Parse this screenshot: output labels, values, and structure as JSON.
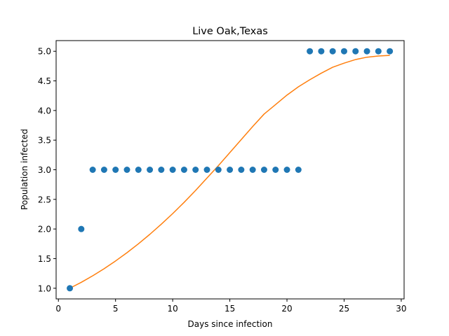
{
  "chart_data": {
    "type": "scatter",
    "title": "Live Oak,Texas",
    "xlabel": "Days since infection",
    "ylabel": "Population infected",
    "xlim": [
      0.0,
      30.0
    ],
    "ylim": [
      1.0,
      5.0
    ],
    "xticks": [
      0,
      5,
      10,
      15,
      20,
      25,
      30
    ],
    "yticks": [
      1.0,
      1.5,
      2.0,
      2.5,
      3.0,
      3.5,
      4.0,
      4.5,
      5.0
    ],
    "xtick_labels": [
      "0",
      "5",
      "10",
      "15",
      "20",
      "25",
      "30"
    ],
    "ytick_labels": [
      "1.0",
      "1.5",
      "2.0",
      "2.5",
      "3.0",
      "3.5",
      "4.0",
      "4.5",
      "5.0"
    ],
    "grid": false,
    "series": [
      {
        "kind": "scatter",
        "color": "#1f77b4",
        "x": [
          1,
          2,
          3,
          4,
          5,
          6,
          7,
          8,
          9,
          10,
          11,
          12,
          13,
          14,
          15,
          16,
          17,
          18,
          19,
          20,
          21,
          22,
          23,
          24,
          25,
          26,
          27,
          28,
          29
        ],
        "y": [
          1,
          2,
          3,
          3,
          3,
          3,
          3,
          3,
          3,
          3,
          3,
          3,
          3,
          3,
          3,
          3,
          3,
          3,
          3,
          3,
          3,
          5,
          5,
          5,
          5,
          5,
          5,
          5,
          5
        ]
      },
      {
        "kind": "line",
        "color": "#ff7f0e",
        "x": [
          1,
          2,
          3,
          4,
          5,
          6,
          7,
          8,
          9,
          10,
          11,
          12,
          13,
          14,
          15,
          16,
          17,
          18,
          19,
          20,
          21,
          22,
          23,
          24,
          25,
          26,
          27,
          28,
          29
        ],
        "y": [
          1.0,
          1.1,
          1.21,
          1.33,
          1.46,
          1.6,
          1.75,
          1.91,
          2.08,
          2.26,
          2.45,
          2.65,
          2.86,
          3.07,
          3.29,
          3.51,
          3.73,
          3.94,
          4.1,
          4.26,
          4.4,
          4.52,
          4.63,
          4.73,
          4.8,
          4.86,
          4.9,
          4.92,
          4.93
        ]
      }
    ]
  }
}
